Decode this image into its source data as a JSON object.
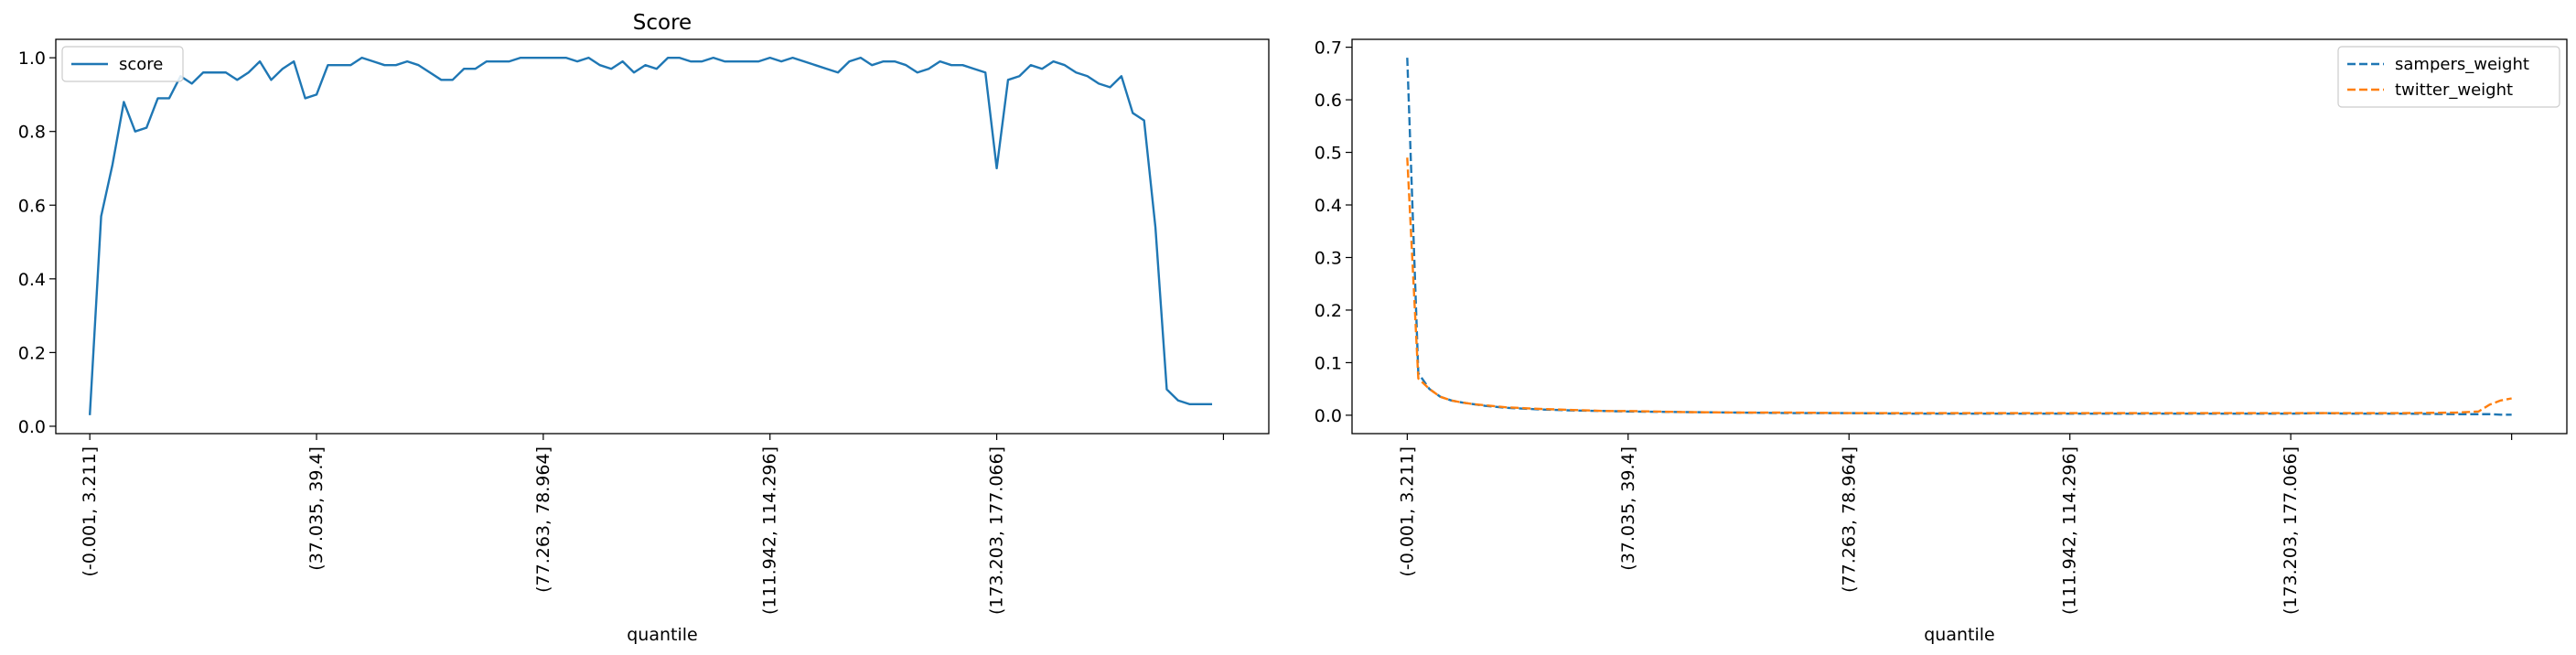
{
  "figure": {
    "background": "#ffffff"
  },
  "chart_data": [
    {
      "type": "line",
      "title": "Score",
      "xlabel": "quantile",
      "ylabel": "",
      "ylim": [
        -0.02,
        1.05
      ],
      "yticks": [
        0.0,
        0.2,
        0.4,
        0.6,
        0.8,
        1.0
      ],
      "ytick_labels": [
        "0.0",
        "0.2",
        "0.4",
        "0.6",
        "0.8",
        "1.0"
      ],
      "xlim": [
        -3,
        104
      ],
      "xticks": [
        0,
        20,
        40,
        60,
        80,
        100
      ],
      "xtick_labels": [
        "(-0.001, 3.211]",
        "(37.035, 39.4]",
        "(77.263, 78.964]",
        "(111.942, 114.296]",
        "(173.203, 177.066]",
        ""
      ],
      "legend_position": "top-left",
      "grid": false,
      "series": [
        {
          "name": "score",
          "color": "#1f77b4",
          "dash": "solid",
          "x": [
            0,
            1,
            2,
            3,
            4,
            5,
            6,
            7,
            8,
            9,
            10,
            11,
            12,
            13,
            14,
            15,
            16,
            17,
            18,
            19,
            20,
            21,
            22,
            23,
            24,
            25,
            26,
            27,
            28,
            29,
            30,
            31,
            32,
            33,
            34,
            35,
            36,
            37,
            38,
            39,
            40,
            41,
            42,
            43,
            44,
            45,
            46,
            47,
            48,
            49,
            50,
            51,
            52,
            53,
            54,
            55,
            56,
            57,
            58,
            59,
            60,
            61,
            62,
            63,
            64,
            65,
            66,
            67,
            68,
            69,
            70,
            71,
            72,
            73,
            74,
            75,
            76,
            77,
            78,
            79,
            80,
            81,
            82,
            83,
            84,
            85,
            86,
            87,
            88,
            89,
            90,
            91,
            92,
            93,
            94,
            95,
            96,
            97,
            98,
            99
          ],
          "values": [
            0.03,
            0.57,
            0.71,
            0.88,
            0.8,
            0.81,
            0.89,
            0.89,
            0.95,
            0.93,
            0.96,
            0.96,
            0.96,
            0.94,
            0.96,
            0.99,
            0.94,
            0.97,
            0.99,
            0.89,
            0.9,
            0.98,
            0.98,
            0.98,
            1.0,
            0.99,
            0.98,
            0.98,
            0.99,
            0.98,
            0.96,
            0.94,
            0.94,
            0.97,
            0.97,
            0.99,
            0.99,
            0.99,
            1.0,
            1.0,
            1.0,
            1.0,
            1.0,
            0.99,
            1.0,
            0.98,
            0.97,
            0.99,
            0.96,
            0.98,
            0.97,
            1.0,
            1.0,
            0.99,
            0.99,
            1.0,
            0.99,
            0.99,
            0.99,
            0.99,
            1.0,
            0.99,
            1.0,
            0.99,
            0.98,
            0.97,
            0.96,
            0.99,
            1.0,
            0.98,
            0.99,
            0.99,
            0.98,
            0.96,
            0.97,
            0.99,
            0.98,
            0.98,
            0.97,
            0.96,
            0.7,
            0.94,
            0.95,
            0.98,
            0.97,
            0.99,
            0.98,
            0.96,
            0.95,
            0.93,
            0.92,
            0.95,
            0.85,
            0.83,
            0.54,
            0.1,
            0.07,
            0.06,
            0.06,
            0.06
          ]
        }
      ]
    },
    {
      "type": "line",
      "title": "",
      "xlabel": "quantile",
      "ylabel": "",
      "ylim": [
        -0.035,
        0.715
      ],
      "yticks": [
        0.0,
        0.1,
        0.2,
        0.3,
        0.4,
        0.5,
        0.6,
        0.7
      ],
      "ytick_labels": [
        "0.0",
        "0.1",
        "0.2",
        "0.3",
        "0.4",
        "0.5",
        "0.6",
        "0.7"
      ],
      "xlim": [
        -5,
        105
      ],
      "xticks": [
        0,
        20,
        40,
        60,
        80,
        100
      ],
      "xtick_labels": [
        "(-0.001, 3.211]",
        "(37.035, 39.4]",
        "(77.263, 78.964]",
        "(111.942, 114.296]",
        "(173.203, 177.066]",
        ""
      ],
      "legend_position": "top-right",
      "grid": false,
      "series": [
        {
          "name": "sampers_weight",
          "color": "#1f77b4",
          "dash": "dashed",
          "x": [
            0,
            1,
            2,
            3,
            4,
            5,
            6,
            7,
            8,
            9,
            10,
            12,
            15,
            18,
            20,
            25,
            30,
            35,
            40,
            45,
            50,
            55,
            60,
            65,
            70,
            75,
            80,
            83,
            85,
            90,
            95,
            97,
            98,
            99,
            100
          ],
          "values": [
            0.68,
            0.08,
            0.05,
            0.035,
            0.028,
            0.024,
            0.021,
            0.018,
            0.016,
            0.014,
            0.013,
            0.011,
            0.009,
            0.008,
            0.007,
            0.006,
            0.005,
            0.004,
            0.004,
            0.003,
            0.003,
            0.003,
            0.003,
            0.003,
            0.003,
            0.003,
            0.003,
            0.004,
            0.003,
            0.003,
            0.002,
            0.002,
            0.002,
            0.001,
            0.001
          ]
        },
        {
          "name": "twitter_weight",
          "color": "#ff7f0e",
          "dash": "dashed",
          "x": [
            0,
            1,
            2,
            3,
            4,
            5,
            6,
            7,
            8,
            9,
            10,
            12,
            15,
            18,
            20,
            25,
            30,
            35,
            40,
            45,
            50,
            55,
            60,
            65,
            70,
            75,
            80,
            85,
            90,
            95,
            97,
            98,
            99,
            100
          ],
          "values": [
            0.49,
            0.07,
            0.05,
            0.035,
            0.028,
            0.024,
            0.021,
            0.019,
            0.017,
            0.015,
            0.014,
            0.012,
            0.01,
            0.008,
            0.008,
            0.006,
            0.005,
            0.005,
            0.004,
            0.004,
            0.004,
            0.004,
            0.004,
            0.004,
            0.004,
            0.004,
            0.004,
            0.004,
            0.004,
            0.005,
            0.007,
            0.02,
            0.028,
            0.032
          ]
        }
      ]
    }
  ]
}
